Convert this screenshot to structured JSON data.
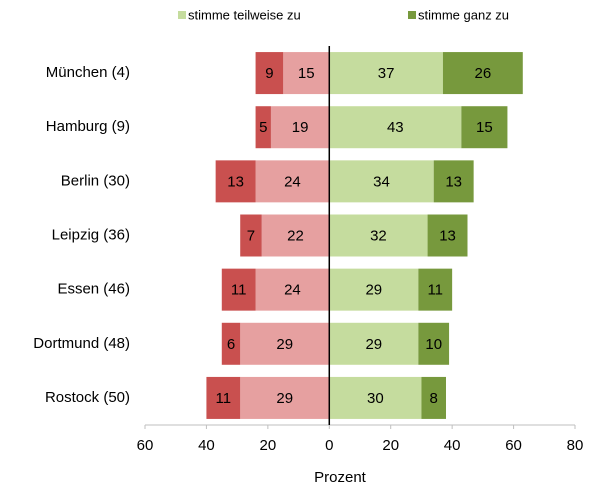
{
  "chart_data": {
    "type": "diverging-bar",
    "categories": [
      "München (4)",
      "Hamburg (9)",
      "Berlin (30)",
      "Leipzig (36)",
      "Essen (46)",
      "Dortmund (48)",
      "Rostock (50)"
    ],
    "series": [
      {
        "color": "#e6a0a0",
        "values": [
          -15,
          -19,
          -24,
          -22,
          -24,
          -29,
          -29
        ],
        "value_labels": [
          "15",
          "19",
          "24",
          "22",
          "24",
          "29",
          "29"
        ]
      },
      {
        "color": "#c9504f",
        "values": [
          -9,
          -5,
          -13,
          -7,
          -11,
          -6,
          -11
        ],
        "value_labels": [
          "9",
          "5",
          "13",
          "7",
          "11",
          "6",
          "11"
        ]
      },
      {
        "name": "stimme teilweise zu",
        "color": "#c5dc9e",
        "values": [
          37,
          43,
          34,
          32,
          29,
          29,
          30
        ]
      },
      {
        "name": "stimme ganz zu",
        "color": "#77993d",
        "values": [
          26,
          15,
          13,
          13,
          11,
          10,
          8
        ]
      }
    ],
    "xlim": [
      -60,
      80
    ],
    "xticks": [
      {
        "value": -60,
        "label": "60"
      },
      {
        "value": -40,
        "label": "40"
      },
      {
        "value": -20,
        "label": "20"
      },
      0,
      20,
      40,
      60,
      80
    ],
    "xlabel": "Prozent",
    "grid": false
  }
}
